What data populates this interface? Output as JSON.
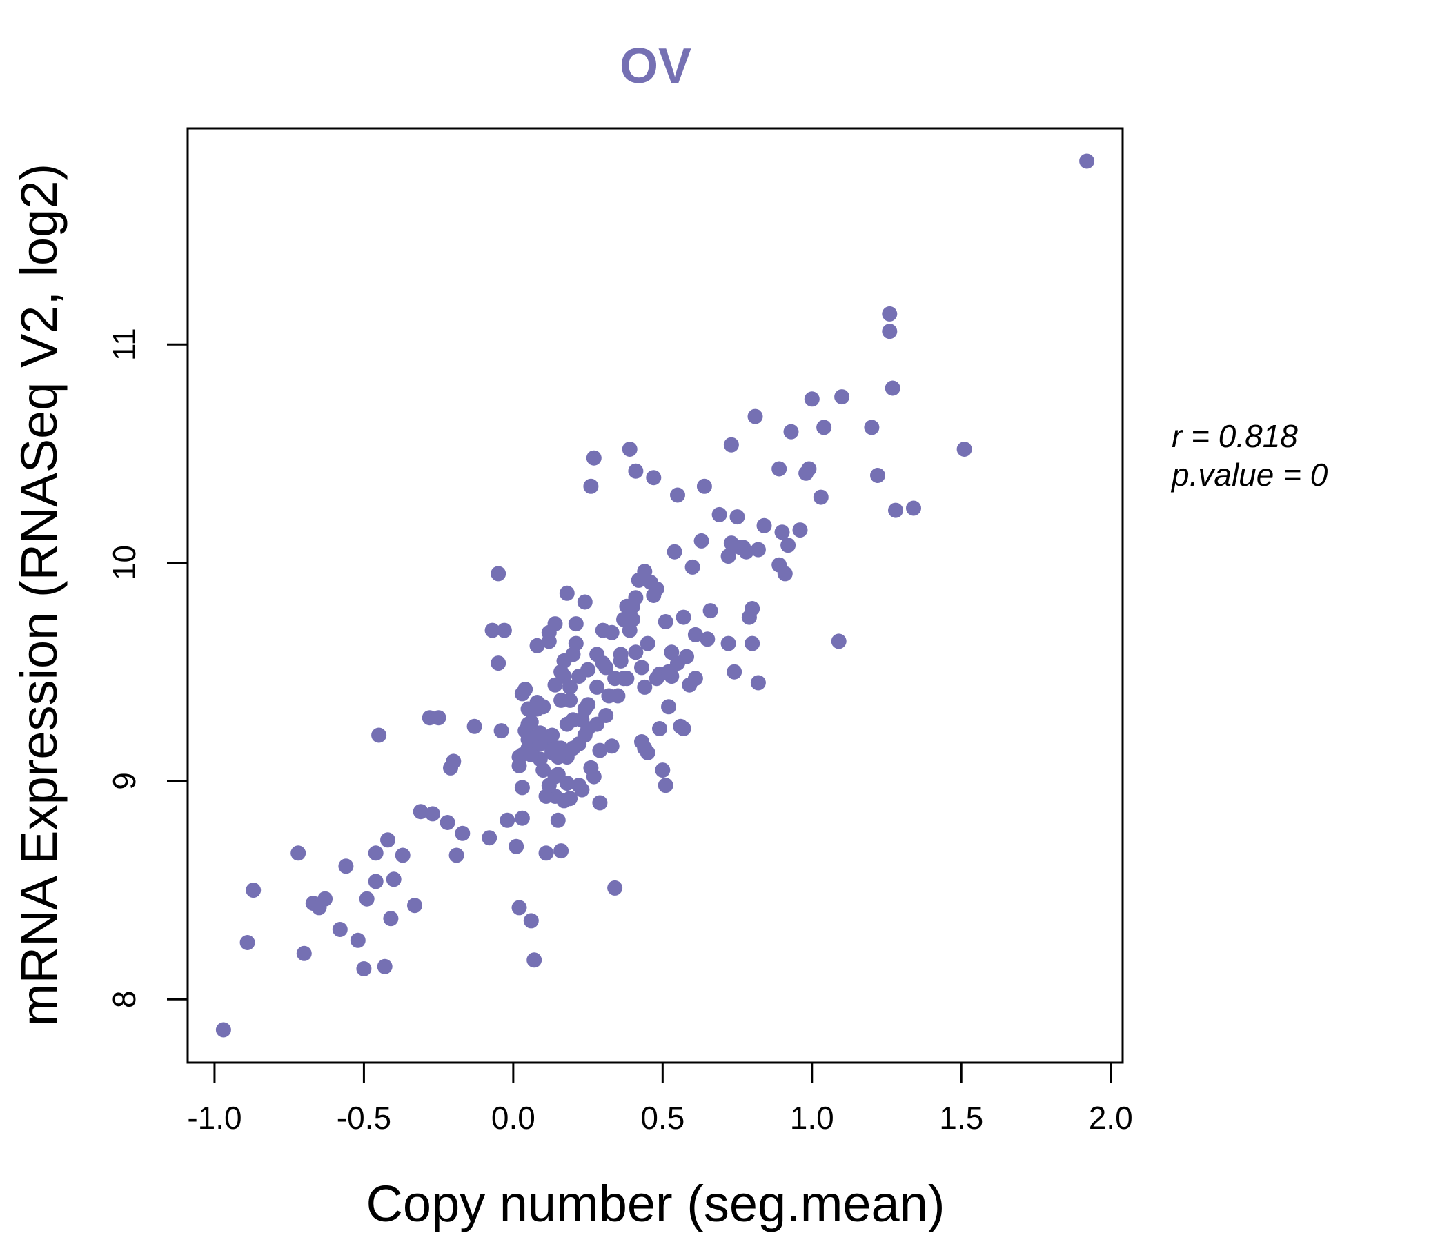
{
  "chart_data": {
    "type": "scatter",
    "title": "OV",
    "xlabel": "Copy number (seg.mean)",
    "ylabel": "mRNA Expression (RNASeq V2, log2)",
    "xlim": [
      -1.09,
      2.04
    ],
    "ylim": [
      7.71,
      11.99
    ],
    "xticks": [
      -1.0,
      -0.5,
      0.0,
      0.5,
      1.0,
      1.5,
      2.0
    ],
    "xtick_labels": [
      "-1.0",
      "-0.5",
      "0.0",
      "0.5",
      "1.0",
      "1.5",
      "2.0"
    ],
    "yticks": [
      8,
      9,
      10,
      11
    ],
    "ytick_labels": [
      "8",
      "9",
      "10",
      "11"
    ],
    "point_color": "#7570b3",
    "grid": false,
    "annotations": {
      "r_label": "r = 0.818",
      "p_label": "p.value = 0"
    },
    "x": [
      -0.97,
      -0.89,
      -0.87,
      -0.72,
      -0.7,
      -0.67,
      -0.65,
      -0.63,
      -0.58,
      -0.56,
      -0.52,
      -0.5,
      -0.49,
      -0.46,
      -0.46,
      -0.45,
      -0.43,
      -0.42,
      -0.41,
      -0.4,
      -0.37,
      -0.33,
      -0.31,
      -0.28,
      -0.27,
      -0.25,
      -0.22,
      -0.21,
      -0.2,
      -0.19,
      -0.17,
      -0.13,
      -0.08,
      -0.07,
      -0.05,
      -0.05,
      -0.04,
      -0.03,
      -0.02,
      0.01,
      0.02,
      0.02,
      0.03,
      0.03,
      0.03,
      0.03,
      0.04,
      0.04,
      0.05,
      0.05,
      0.06,
      0.06,
      0.07,
      0.07,
      0.08,
      0.08,
      0.08,
      0.09,
      0.1,
      0.1,
      0.11,
      0.11,
      0.12,
      0.12,
      0.13,
      0.13,
      0.14,
      0.14,
      0.14,
      0.15,
      0.15,
      0.15,
      0.16,
      0.16,
      0.16,
      0.17,
      0.17,
      0.18,
      0.18,
      0.18,
      0.19,
      0.19,
      0.2,
      0.2,
      0.21,
      0.22,
      0.22,
      0.23,
      0.24,
      0.24,
      0.25,
      0.25,
      0.26,
      0.26,
      0.27,
      0.28,
      0.28,
      0.29,
      0.3,
      0.31,
      0.32,
      0.33,
      0.34,
      0.35,
      0.36,
      0.37,
      0.38,
      0.39,
      0.39,
      0.4,
      0.41,
      0.41,
      0.42,
      0.43,
      0.44,
      0.44,
      0.45,
      0.46,
      0.47,
      0.47,
      0.48,
      0.49,
      0.5,
      0.51,
      0.52,
      0.53,
      0.54,
      0.55,
      0.55,
      0.57,
      0.58,
      0.59,
      0.6,
      0.61,
      0.63,
      0.64,
      0.65,
      0.69,
      0.72,
      0.73,
      0.73,
      0.74,
      0.75,
      0.77,
      0.78,
      0.8,
      0.8,
      0.81,
      0.82,
      0.82,
      0.89,
      0.89,
      0.9,
      0.91,
      0.92,
      0.93,
      0.96,
      0.98,
      0.99,
      1.0,
      1.03,
      1.04,
      1.09,
      1.1,
      1.2,
      1.22,
      1.26,
      1.26,
      1.27,
      1.28,
      1.34,
      1.51,
      1.92,
      0.02,
      0.05,
      0.07,
      0.34,
      0.11,
      0.14,
      0.16,
      0.19,
      0.22,
      0.27,
      0.29,
      0.31,
      0.37,
      0.38,
      0.4,
      0.43,
      0.45,
      0.49,
      0.51,
      0.53,
      0.57,
      0.61,
      0.66,
      0.72,
      0.76,
      0.79,
      0.84,
      0.05,
      0.09,
      0.12,
      0.17,
      0.21,
      0.24,
      0.28,
      0.33,
      0.36,
      0.41,
      0.44,
      0.48,
      0.52,
      0.56,
      0.13,
      0.18,
      0.23,
      0.06,
      0.09,
      0.15,
      0.2,
      0.25,
      0.3
    ],
    "y": [
      7.86,
      8.26,
      8.5,
      8.67,
      8.21,
      8.44,
      8.42,
      8.46,
      8.32,
      8.61,
      8.27,
      8.14,
      8.46,
      8.67,
      8.54,
      9.21,
      8.15,
      8.73,
      8.37,
      8.55,
      8.66,
      8.43,
      8.86,
      9.29,
      8.85,
      9.29,
      8.81,
      9.06,
      9.09,
      8.66,
      8.76,
      9.25,
      8.74,
      9.69,
      9.95,
      9.54,
      9.23,
      9.69,
      8.82,
      8.7,
      9.07,
      8.42,
      8.97,
      9.4,
      8.83,
      9.12,
      9.23,
      9.42,
      9.33,
      9.15,
      9.27,
      8.36,
      9.2,
      9.16,
      9.36,
      9.62,
      9.33,
      9.1,
      9.34,
      9.05,
      9.19,
      8.67,
      9.64,
      9.68,
      9.21,
      9.13,
      9.72,
      8.93,
      9.44,
      9.03,
      8.82,
      9.15,
      8.68,
      9.37,
      9.15,
      9.48,
      9.55,
      9.11,
      9.86,
      9.26,
      8.92,
      9.43,
      9.28,
      9.58,
      9.72,
      9.17,
      9.48,
      9.28,
      9.21,
      9.82,
      9.51,
      9.35,
      9.06,
      10.35,
      10.48,
      9.26,
      9.58,
      8.9,
      9.69,
      9.52,
      9.39,
      9.16,
      9.47,
      9.39,
      9.58,
      9.47,
      9.8,
      9.69,
      10.52,
      9.8,
      9.59,
      10.42,
      9.92,
      9.52,
      9.15,
      9.96,
      9.63,
      9.91,
      10.39,
      9.85,
      9.47,
      9.24,
      9.05,
      9.73,
      9.34,
      9.48,
      10.05,
      9.54,
      10.31,
      9.75,
      9.57,
      9.44,
      9.98,
      9.67,
      10.1,
      10.35,
      9.65,
      10.22,
      9.63,
      10.54,
      10.09,
      9.5,
      10.21,
      10.07,
      10.05,
      9.79,
      9.63,
      10.67,
      10.06,
      9.45,
      10.43,
      9.99,
      10.14,
      9.95,
      10.08,
      10.6,
      10.15,
      10.41,
      10.43,
      10.75,
      10.3,
      10.62,
      9.64,
      10.76,
      10.62,
      10.4,
      11.14,
      11.06,
      10.8,
      10.24,
      10.25,
      10.52,
      11.84,
      9.11,
      9.26,
      8.18,
      8.51,
      8.93,
      9.02,
      9.5,
      9.37,
      8.98,
      9.02,
      9.14,
      9.3,
      9.74,
      9.47,
      9.74,
      9.18,
      9.13,
      9.49,
      8.98,
      9.59,
      9.24,
      9.47,
      9.78,
      10.03,
      10.07,
      9.75,
      10.17,
      9.19,
      9.17,
      8.98,
      8.91,
      9.63,
      9.33,
      9.43,
      9.68,
      9.55,
      9.84,
      9.43,
      9.88,
      9.5,
      9.25,
      9.14,
      8.99,
      8.96,
      9.12,
      9.22,
      9.11,
      9.15,
      9.24,
      9.54
    ]
  }
}
